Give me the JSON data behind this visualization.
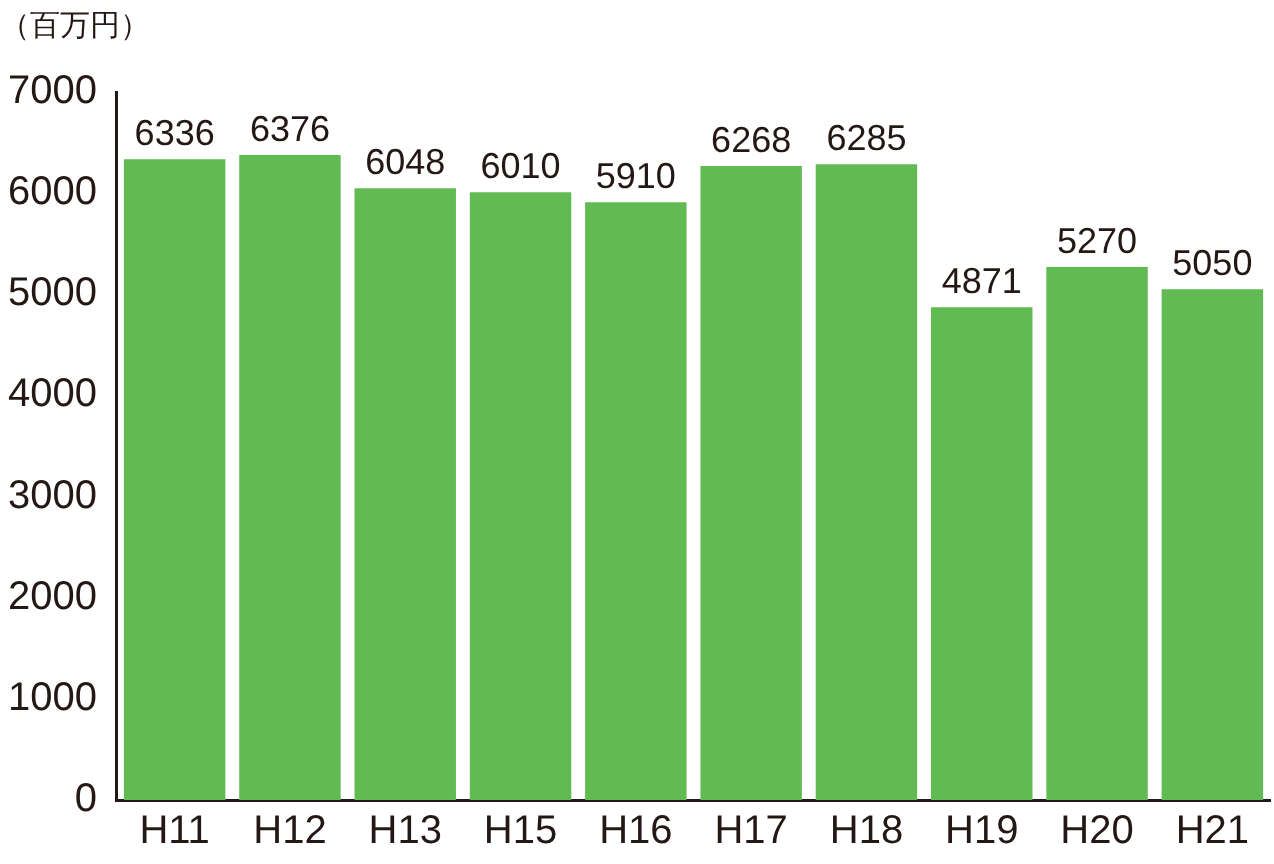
{
  "chart_data": {
    "type": "bar",
    "ylabel": "（百万円）",
    "categories": [
      "H11",
      "H12",
      "H13",
      "H15",
      "H16",
      "H17",
      "H18",
      "H19",
      "H20",
      "H21"
    ],
    "values": [
      6336,
      6376,
      6048,
      6010,
      5910,
      6268,
      6285,
      4871,
      5270,
      5050
    ],
    "color": "#62bb52",
    "ylim": [
      0,
      7000
    ],
    "yticks": [
      0,
      1000,
      2000,
      3000,
      4000,
      5000,
      6000,
      7000
    ],
    "grid": false,
    "legend": false,
    "data_labels": true
  }
}
